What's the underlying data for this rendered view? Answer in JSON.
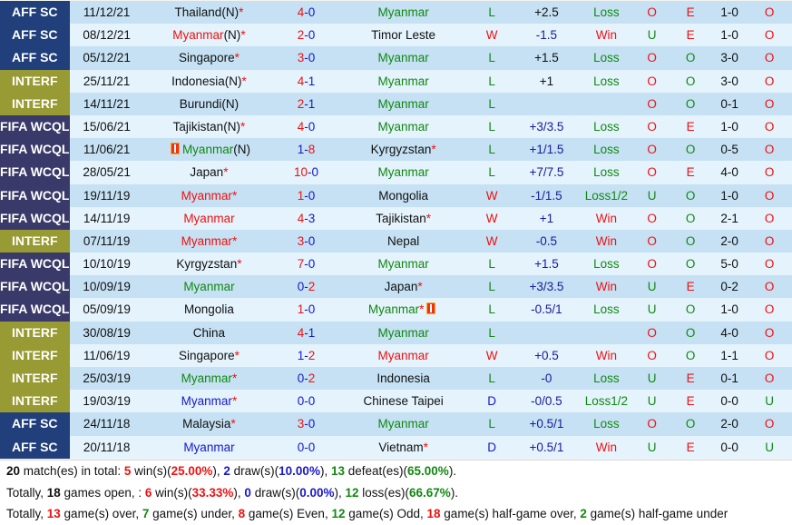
{
  "colors": {
    "win": "#ee1111",
    "loss": "#118811",
    "draw": "#1818cc",
    "aff": "#213f7b",
    "interf": "#989a33",
    "fifa": "#3a3a6a"
  },
  "matches": [
    {
      "league": "AFF SC",
      "lg": "aff",
      "date": "11/12/21",
      "home": "Thailand",
      "home_suffix": "(N)",
      "home_star": true,
      "home_color": "black",
      "score_h": "4",
      "score_a": "0",
      "sh_color": "red",
      "sa_color": "blue",
      "away": "Myanmar",
      "away_star": false,
      "away_color": "green",
      "result": "L",
      "hcp": "+2.5",
      "hcp_color": "black",
      "hres": "Loss",
      "ou": "O",
      "oe": "E",
      "ht": "1-0",
      "htou": "O"
    },
    {
      "league": "AFF SC",
      "lg": "aff",
      "date": "08/12/21",
      "home": "Myanmar",
      "home_suffix": "(N)",
      "home_star": true,
      "home_color": "red",
      "score_h": "2",
      "score_a": "0",
      "sh_color": "red",
      "sa_color": "blue",
      "away": "Timor Leste",
      "away_star": false,
      "away_color": "black",
      "result": "W",
      "hcp": "-1.5",
      "hcp_color": "navy",
      "hres": "Win",
      "ou": "U",
      "oe": "E",
      "ht": "1-0",
      "htou": "O"
    },
    {
      "league": "AFF SC",
      "lg": "aff",
      "date": "05/12/21",
      "home": "Singapore",
      "home_suffix": "",
      "home_star": true,
      "home_color": "black",
      "score_h": "3",
      "score_a": "0",
      "sh_color": "red",
      "sa_color": "blue",
      "away": "Myanmar",
      "away_star": false,
      "away_color": "green",
      "result": "L",
      "hcp": "+1.5",
      "hcp_color": "black",
      "hres": "Loss",
      "ou": "O",
      "oe": "O",
      "ht": "3-0",
      "htou": "O"
    },
    {
      "league": "INTERF",
      "lg": "interf",
      "date": "25/11/21",
      "home": "Indonesia",
      "home_suffix": "(N)",
      "home_star": true,
      "home_color": "black",
      "score_h": "4",
      "score_a": "1",
      "sh_color": "red",
      "sa_color": "blue",
      "away": "Myanmar",
      "away_star": false,
      "away_color": "green",
      "result": "L",
      "hcp": "+1",
      "hcp_color": "black",
      "hres": "Loss",
      "ou": "O",
      "oe": "O",
      "ht": "3-0",
      "htou": "O"
    },
    {
      "league": "INTERF",
      "lg": "interf",
      "date": "14/11/21",
      "home": "Burundi",
      "home_suffix": "(N)",
      "home_star": false,
      "home_color": "black",
      "score_h": "2",
      "score_a": "1",
      "sh_color": "red",
      "sa_color": "blue",
      "away": "Myanmar",
      "away_star": false,
      "away_color": "green",
      "result": "L",
      "hcp": "",
      "hcp_color": "navy",
      "hres": "",
      "ou": "O",
      "oe": "O",
      "ht": "0-1",
      "htou": "O"
    },
    {
      "league": "FIFA WCQL",
      "lg": "fifa",
      "date": "15/06/21",
      "home": "Tajikistan",
      "home_suffix": "(N)",
      "home_star": true,
      "home_color": "black",
      "score_h": "4",
      "score_a": "0",
      "sh_color": "red",
      "sa_color": "blue",
      "away": "Myanmar",
      "away_star": false,
      "away_color": "green",
      "result": "L",
      "hcp": "+3/3.5",
      "hcp_color": "navy",
      "hres": "Loss",
      "ou": "O",
      "oe": "E",
      "ht": "1-0",
      "htou": "O"
    },
    {
      "league": "FIFA WCQL",
      "lg": "fifa",
      "date": "11/06/21",
      "home": "Myanmar",
      "home_suffix": "(N)",
      "home_star": false,
      "home_card": true,
      "home_color": "green",
      "score_h": "1",
      "score_a": "8",
      "sh_color": "blue",
      "sa_color": "red",
      "away": "Kyrgyzstan",
      "away_star": true,
      "away_color": "black",
      "result": "L",
      "hcp": "+1/1.5",
      "hcp_color": "navy",
      "hres": "Loss",
      "ou": "O",
      "oe": "O",
      "ht": "0-5",
      "htou": "O"
    },
    {
      "league": "FIFA WCQL",
      "lg": "fifa",
      "date": "28/05/21",
      "home": "Japan",
      "home_suffix": "",
      "home_star": true,
      "home_color": "black",
      "score_h": "10",
      "score_a": "0",
      "sh_color": "red",
      "sa_color": "blue",
      "away": "Myanmar",
      "away_star": false,
      "away_color": "green",
      "result": "L",
      "hcp": "+7/7.5",
      "hcp_color": "navy",
      "hres": "Loss",
      "ou": "O",
      "oe": "E",
      "ht": "4-0",
      "htou": "O"
    },
    {
      "league": "FIFA WCQL",
      "lg": "fifa",
      "date": "19/11/19",
      "home": "Myanmar",
      "home_suffix": "",
      "home_star": true,
      "home_color": "red",
      "score_h": "1",
      "score_a": "0",
      "sh_color": "red",
      "sa_color": "blue",
      "away": "Mongolia",
      "away_star": false,
      "away_color": "black",
      "result": "W",
      "hcp": "-1/1.5",
      "hcp_color": "navy",
      "hres": "Loss1/2",
      "ou": "U",
      "oe": "O",
      "ht": "1-0",
      "htou": "O"
    },
    {
      "league": "FIFA WCQL",
      "lg": "fifa",
      "date": "14/11/19",
      "home": "Myanmar",
      "home_suffix": "",
      "home_star": false,
      "home_color": "red",
      "score_h": "4",
      "score_a": "3",
      "sh_color": "red",
      "sa_color": "blue",
      "away": "Tajikistan",
      "away_star": true,
      "away_color": "black",
      "result": "W",
      "hcp": "+1",
      "hcp_color": "navy",
      "hres": "Win",
      "ou": "O",
      "oe": "O",
      "ht": "2-1",
      "htou": "O"
    },
    {
      "league": "INTERF",
      "lg": "interf",
      "date": "07/11/19",
      "home": "Myanmar",
      "home_suffix": "",
      "home_star": true,
      "home_color": "red",
      "score_h": "3",
      "score_a": "0",
      "sh_color": "red",
      "sa_color": "blue",
      "away": "Nepal",
      "away_star": false,
      "away_color": "black",
      "result": "W",
      "hcp": "-0.5",
      "hcp_color": "navy",
      "hres": "Win",
      "ou": "O",
      "oe": "O",
      "ht": "2-0",
      "htou": "O"
    },
    {
      "league": "FIFA WCQL",
      "lg": "fifa",
      "date": "10/10/19",
      "home": "Kyrgyzstan",
      "home_suffix": "",
      "home_star": true,
      "home_color": "black",
      "score_h": "7",
      "score_a": "0",
      "sh_color": "red",
      "sa_color": "blue",
      "away": "Myanmar",
      "away_star": false,
      "away_color": "green",
      "result": "L",
      "hcp": "+1.5",
      "hcp_color": "navy",
      "hres": "Loss",
      "ou": "O",
      "oe": "O",
      "ht": "5-0",
      "htou": "O"
    },
    {
      "league": "FIFA WCQL",
      "lg": "fifa",
      "date": "10/09/19",
      "home": "Myanmar",
      "home_suffix": "",
      "home_star": false,
      "home_color": "green",
      "score_h": "0",
      "score_a": "2",
      "sh_color": "blue",
      "sa_color": "red",
      "away": "Japan",
      "away_star": true,
      "away_color": "black",
      "result": "L",
      "hcp": "+3/3.5",
      "hcp_color": "navy",
      "hres": "Win",
      "ou": "U",
      "oe": "E",
      "ht": "0-2",
      "htou": "O"
    },
    {
      "league": "FIFA WCQL",
      "lg": "fifa",
      "date": "05/09/19",
      "home": "Mongolia",
      "home_suffix": "",
      "home_star": false,
      "home_color": "black",
      "score_h": "1",
      "score_a": "0",
      "sh_color": "red",
      "sa_color": "blue",
      "away": "Myanmar",
      "away_star": true,
      "away_card": true,
      "away_color": "green",
      "result": "L",
      "hcp": "-0.5/1",
      "hcp_color": "navy",
      "hres": "Loss",
      "ou": "U",
      "oe": "O",
      "ht": "1-0",
      "htou": "O"
    },
    {
      "league": "INTERF",
      "lg": "interf",
      "date": "30/08/19",
      "home": "China",
      "home_suffix": "",
      "home_star": false,
      "home_color": "black",
      "score_h": "4",
      "score_a": "1",
      "sh_color": "red",
      "sa_color": "blue",
      "away": "Myanmar",
      "away_star": false,
      "away_color": "green",
      "result": "L",
      "hcp": "",
      "hcp_color": "navy",
      "hres": "",
      "ou": "O",
      "oe": "O",
      "ht": "4-0",
      "htou": "O"
    },
    {
      "league": "INTERF",
      "lg": "interf",
      "date": "11/06/19",
      "home": "Singapore",
      "home_suffix": "",
      "home_star": true,
      "home_color": "black",
      "score_h": "1",
      "score_a": "2",
      "sh_color": "blue",
      "sa_color": "red",
      "away": "Myanmar",
      "away_star": false,
      "away_color": "red",
      "result": "W",
      "hcp": "+0.5",
      "hcp_color": "navy",
      "hres": "Win",
      "ou": "O",
      "oe": "O",
      "ht": "1-1",
      "htou": "O"
    },
    {
      "league": "INTERF",
      "lg": "interf",
      "date": "25/03/19",
      "home": "Myanmar",
      "home_suffix": "",
      "home_star": true,
      "home_color": "green",
      "score_h": "0",
      "score_a": "2",
      "sh_color": "blue",
      "sa_color": "red",
      "away": "Indonesia",
      "away_star": false,
      "away_color": "black",
      "result": "L",
      "hcp": "-0",
      "hcp_color": "navy",
      "hres": "Loss",
      "ou": "U",
      "oe": "E",
      "ht": "0-1",
      "htou": "O"
    },
    {
      "league": "INTERF",
      "lg": "interf",
      "date": "19/03/19",
      "home": "Myanmar",
      "home_suffix": "",
      "home_star": true,
      "home_color": "blue",
      "score_h": "0",
      "score_a": "0",
      "sh_color": "blue",
      "sa_color": "blue",
      "away": "Chinese Taipei",
      "away_star": false,
      "away_color": "black",
      "result": "D",
      "hcp": "-0/0.5",
      "hcp_color": "navy",
      "hres": "Loss1/2",
      "ou": "U",
      "oe": "E",
      "ht": "0-0",
      "htou": "U"
    },
    {
      "league": "AFF SC",
      "lg": "aff",
      "date": "24/11/18",
      "home": "Malaysia",
      "home_suffix": "",
      "home_star": true,
      "home_color": "black",
      "score_h": "3",
      "score_a": "0",
      "sh_color": "red",
      "sa_color": "blue",
      "away": "Myanmar",
      "away_star": false,
      "away_color": "green",
      "result": "L",
      "hcp": "+0.5/1",
      "hcp_color": "navy",
      "hres": "Loss",
      "ou": "O",
      "oe": "O",
      "ht": "2-0",
      "htou": "O"
    },
    {
      "league": "AFF SC",
      "lg": "aff",
      "date": "20/11/18",
      "home": "Myanmar",
      "home_suffix": "",
      "home_star": false,
      "home_color": "blue",
      "score_h": "0",
      "score_a": "0",
      "sh_color": "blue",
      "sa_color": "blue",
      "away": "Vietnam",
      "away_star": true,
      "away_color": "black",
      "result": "D",
      "hcp": "+0.5/1",
      "hcp_color": "navy",
      "hres": "Win",
      "ou": "U",
      "oe": "E",
      "ht": "0-0",
      "htou": "U"
    }
  ],
  "summary": {
    "line1": [
      {
        "t": "20",
        "c": "black",
        "b": true
      },
      {
        "t": " match(es) in total: "
      },
      {
        "t": "5",
        "c": "red",
        "b": true
      },
      {
        "t": " win(s)("
      },
      {
        "t": "25.00%",
        "c": "red",
        "b": true
      },
      {
        "t": "), "
      },
      {
        "t": "2",
        "c": "blue",
        "b": true
      },
      {
        "t": " draw(s)("
      },
      {
        "t": "10.00%",
        "c": "blue",
        "b": true
      },
      {
        "t": "), "
      },
      {
        "t": "13",
        "c": "green",
        "b": true
      },
      {
        "t": " defeat(es)("
      },
      {
        "t": "65.00%",
        "c": "green",
        "b": true
      },
      {
        "t": ")."
      }
    ],
    "line2": [
      {
        "t": "Totally, "
      },
      {
        "t": "18",
        "c": "black",
        "b": true
      },
      {
        "t": " games open, : "
      },
      {
        "t": "6",
        "c": "red",
        "b": true
      },
      {
        "t": " win(s)("
      },
      {
        "t": "33.33%",
        "c": "red",
        "b": true
      },
      {
        "t": "), "
      },
      {
        "t": "0",
        "c": "blue",
        "b": true
      },
      {
        "t": " draw(s)("
      },
      {
        "t": "0.00%",
        "c": "blue",
        "b": true
      },
      {
        "t": "), "
      },
      {
        "t": "12",
        "c": "green",
        "b": true
      },
      {
        "t": " loss(es)("
      },
      {
        "t": "66.67%",
        "c": "green",
        "b": true
      },
      {
        "t": ")."
      }
    ],
    "line3": [
      {
        "t": "Totally, "
      },
      {
        "t": "13",
        "c": "red",
        "b": true
      },
      {
        "t": " game(s) over, "
      },
      {
        "t": "7",
        "c": "green",
        "b": true
      },
      {
        "t": " game(s) under, "
      },
      {
        "t": "8",
        "c": "red",
        "b": true
      },
      {
        "t": " game(s) Even, "
      },
      {
        "t": "12",
        "c": "green",
        "b": true
      },
      {
        "t": " game(s) Odd, "
      },
      {
        "t": "18",
        "c": "red",
        "b": true
      },
      {
        "t": " game(s) half-game over, "
      },
      {
        "t": "2",
        "c": "green",
        "b": true
      },
      {
        "t": " game(s) half-game under"
      }
    ]
  }
}
